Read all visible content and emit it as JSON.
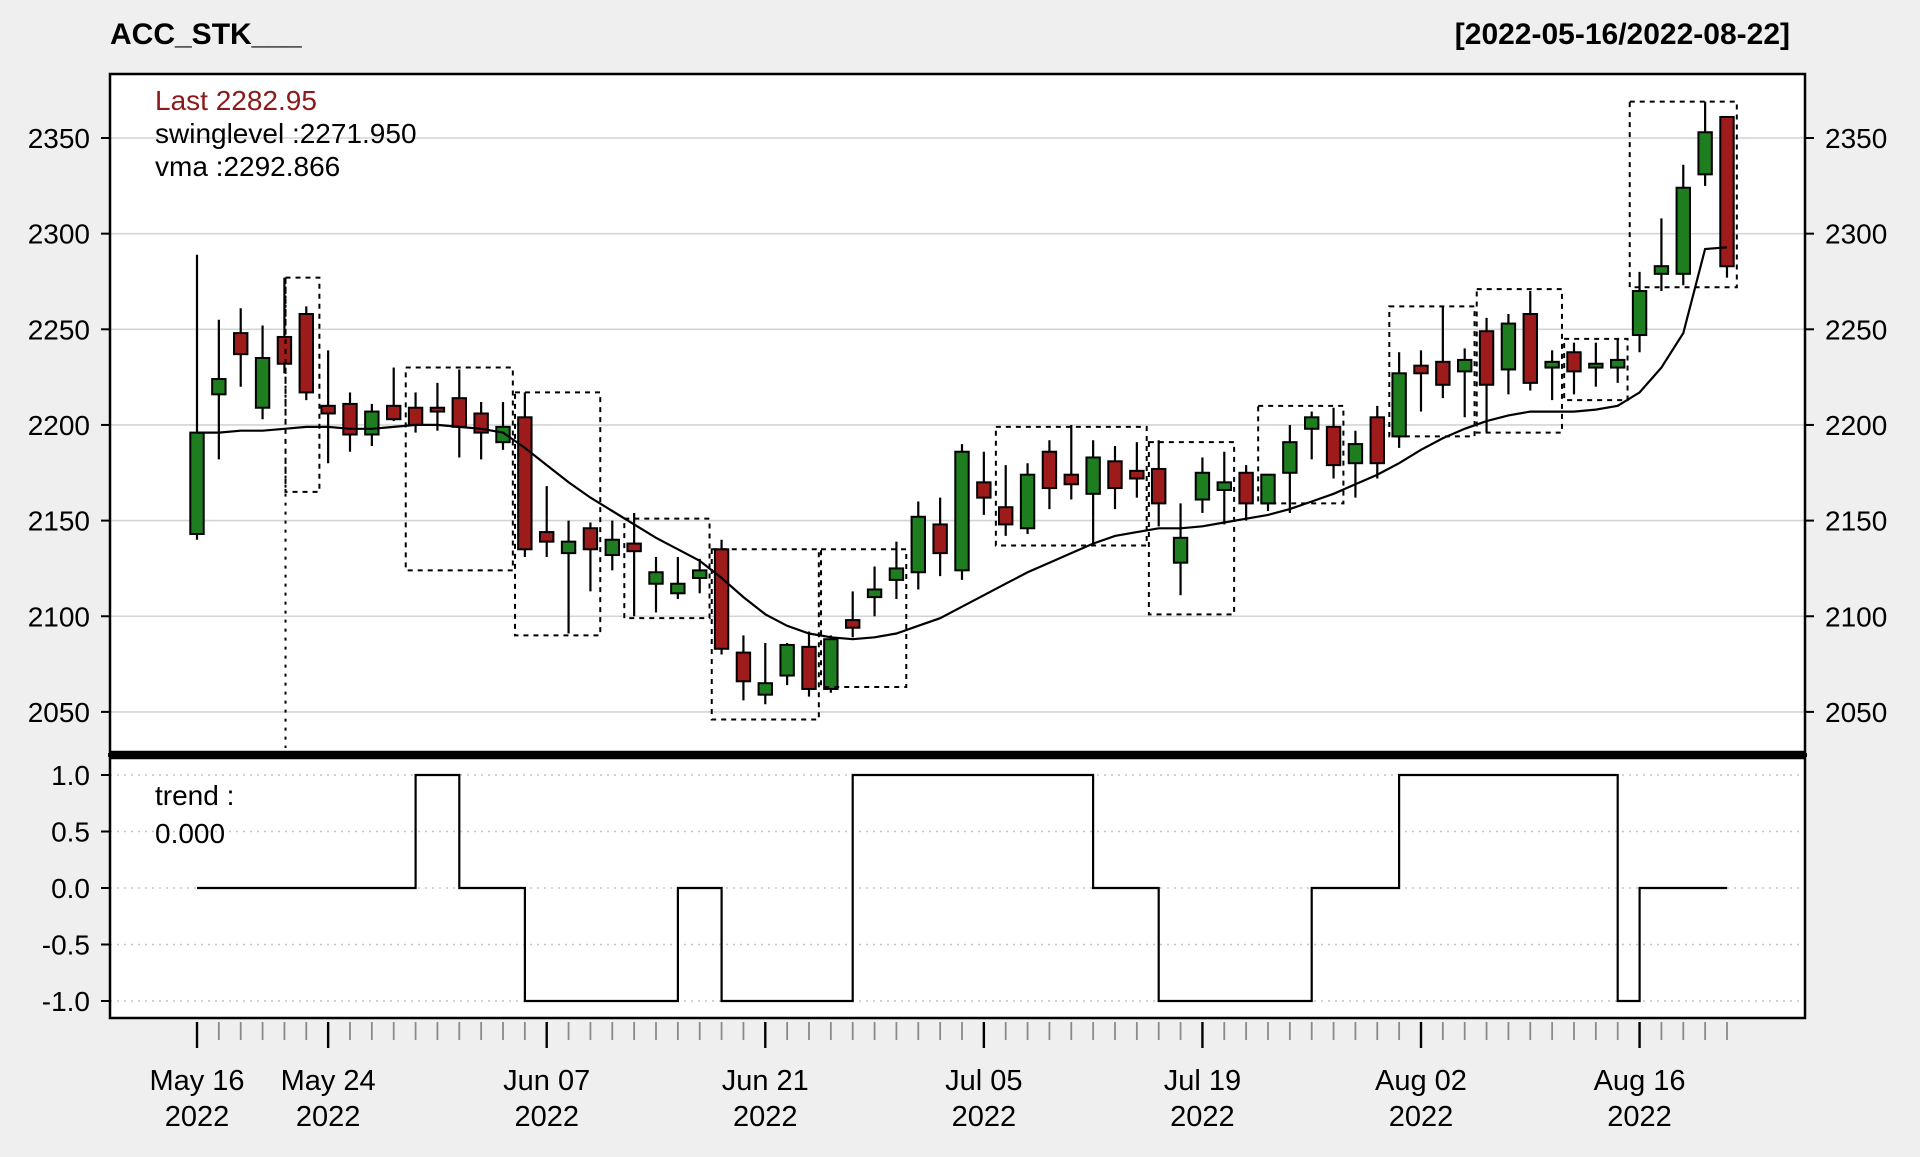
{
  "header": {
    "title": "ACC_STK___",
    "date_range": "[2022-05-16/2022-08-22]"
  },
  "main_panel": {
    "legend": {
      "last_label": "Last 2282.95",
      "swinglevel_label": "swinglevel :2271.950",
      "vma_label": "vma :2292.866"
    },
    "last_value": 2282.95,
    "swinglevel": 2271.95,
    "vma_last": 2292.866,
    "y_ticks": [
      2350,
      2300,
      2250,
      2200,
      2150,
      2100,
      2050
    ]
  },
  "trend_panel": {
    "label_line1": "trend :",
    "label_line2": "0.000",
    "value": 0.0,
    "y_ticks": [
      "1.0",
      "0.5",
      "0.0",
      "-0.5",
      "-1.0"
    ]
  },
  "chart_data": {
    "type": "candlestick",
    "title": "ACC_STK___",
    "subtitle": "[2022-05-16/2022-08-22]",
    "ylabel": "",
    "xlabel": "",
    "grid": true,
    "ylim_main": [
      2029,
      2383
    ],
    "ylim_trend": [
      -1.15,
      1.15
    ],
    "x_ticks": [
      {
        "index": 0,
        "label": "May 16",
        "year": "2022"
      },
      {
        "index": 6,
        "label": "May 24",
        "year": "2022"
      },
      {
        "index": 16,
        "label": "Jun 07",
        "year": "2022"
      },
      {
        "index": 26,
        "label": "Jun 21",
        "year": "2022"
      },
      {
        "index": 36,
        "label": "Jul 05",
        "year": "2022"
      },
      {
        "index": 46,
        "label": "Jul 19",
        "year": "2022"
      },
      {
        "index": 56,
        "label": "Aug 02",
        "year": "2022"
      },
      {
        "index": 66,
        "label": "Aug 16",
        "year": "2022"
      }
    ],
    "dates": [
      "2022-05-16",
      "2022-05-17",
      "2022-05-18",
      "2022-05-19",
      "2022-05-20",
      "2022-05-23",
      "2022-05-24",
      "2022-05-25",
      "2022-05-26",
      "2022-05-27",
      "2022-05-30",
      "2022-05-31",
      "2022-06-01",
      "2022-06-02",
      "2022-06-03",
      "2022-06-06",
      "2022-06-07",
      "2022-06-08",
      "2022-06-09",
      "2022-06-10",
      "2022-06-13",
      "2022-06-14",
      "2022-06-15",
      "2022-06-16",
      "2022-06-17",
      "2022-06-20",
      "2022-06-21",
      "2022-06-22",
      "2022-06-23",
      "2022-06-24",
      "2022-06-27",
      "2022-06-28",
      "2022-06-29",
      "2022-06-30",
      "2022-07-01",
      "2022-07-04",
      "2022-07-05",
      "2022-07-06",
      "2022-07-07",
      "2022-07-08",
      "2022-07-11",
      "2022-07-12",
      "2022-07-13",
      "2022-07-14",
      "2022-07-15",
      "2022-07-18",
      "2022-07-19",
      "2022-07-20",
      "2022-07-21",
      "2022-07-22",
      "2022-07-25",
      "2022-07-26",
      "2022-07-27",
      "2022-07-28",
      "2022-07-29",
      "2022-08-01",
      "2022-08-02",
      "2022-08-03",
      "2022-08-04",
      "2022-08-05",
      "2022-08-08",
      "2022-08-09",
      "2022-08-10",
      "2022-08-11",
      "2022-08-12",
      "2022-08-15",
      "2022-08-16",
      "2022-08-17",
      "2022-08-18",
      "2022-08-19",
      "2022-08-22"
    ],
    "ohlc": [
      [
        2143,
        2289,
        2140,
        2196
      ],
      [
        2216,
        2255,
        2182,
        2224
      ],
      [
        2248,
        2261,
        2220,
        2237
      ],
      [
        2209,
        2252,
        2203,
        2235
      ],
      [
        2246,
        2277,
        2227,
        2232
      ],
      [
        2258,
        2262,
        2213,
        2217
      ],
      [
        2210,
        2239,
        2180,
        2206
      ],
      [
        2211,
        2217,
        2186,
        2195
      ],
      [
        2195,
        2211,
        2189,
        2207
      ],
      [
        2210,
        2230,
        2202,
        2203
      ],
      [
        2209,
        2217,
        2196,
        2200
      ],
      [
        2209,
        2222,
        2197,
        2207
      ],
      [
        2214,
        2229,
        2183,
        2199
      ],
      [
        2206,
        2212,
        2182,
        2196
      ],
      [
        2191,
        2212,
        2187,
        2199
      ],
      [
        2204,
        2217,
        2131,
        2135
      ],
      [
        2144,
        2168,
        2131,
        2139
      ],
      [
        2133,
        2150,
        2091,
        2139
      ],
      [
        2146,
        2149,
        2113,
        2135
      ],
      [
        2132,
        2150,
        2124,
        2140
      ],
      [
        2138,
        2154,
        2100,
        2134
      ],
      [
        2117,
        2131,
        2102,
        2123
      ],
      [
        2112,
        2131,
        2109,
        2117
      ],
      [
        2120,
        2130,
        2112,
        2124
      ],
      [
        2135,
        2140,
        2080,
        2083
      ],
      [
        2081,
        2090,
        2056,
        2066
      ],
      [
        2059,
        2086,
        2054,
        2065
      ],
      [
        2069,
        2086,
        2064,
        2085
      ],
      [
        2084,
        2092,
        2058,
        2062
      ],
      [
        2062,
        2090,
        2060,
        2088
      ],
      [
        2098,
        2113,
        2089,
        2094
      ],
      [
        2110,
        2126,
        2100,
        2114
      ],
      [
        2119,
        2139,
        2109,
        2125
      ],
      [
        2123,
        2160,
        2114,
        2152
      ],
      [
        2148,
        2162,
        2121,
        2133
      ],
      [
        2124,
        2190,
        2119,
        2186
      ],
      [
        2170,
        2186,
        2153,
        2162
      ],
      [
        2157,
        2179,
        2142,
        2148
      ],
      [
        2146,
        2180,
        2143,
        2174
      ],
      [
        2186,
        2192,
        2156,
        2167
      ],
      [
        2174,
        2200,
        2161,
        2169
      ],
      [
        2164,
        2192,
        2137,
        2183
      ],
      [
        2181,
        2189,
        2156,
        2167
      ],
      [
        2176,
        2191,
        2162,
        2172
      ],
      [
        2177,
        2192,
        2147,
        2159
      ],
      [
        2128,
        2159,
        2111,
        2141
      ],
      [
        2161,
        2183,
        2154,
        2175
      ],
      [
        2166,
        2186,
        2148,
        2170
      ],
      [
        2175,
        2179,
        2150,
        2159
      ],
      [
        2159,
        2174,
        2155,
        2174
      ],
      [
        2175,
        2200,
        2154,
        2191
      ],
      [
        2198,
        2207,
        2182,
        2204
      ],
      [
        2199,
        2209,
        2172,
        2179
      ],
      [
        2180,
        2197,
        2162,
        2190
      ],
      [
        2204,
        2210,
        2172,
        2180
      ],
      [
        2194,
        2238,
        2188,
        2227
      ],
      [
        2231,
        2239,
        2207,
        2227
      ],
      [
        2233,
        2262,
        2214,
        2221
      ],
      [
        2228,
        2240,
        2204,
        2234
      ],
      [
        2249,
        2256,
        2196,
        2221
      ],
      [
        2229,
        2258,
        2216,
        2253
      ],
      [
        2258,
        2270,
        2218,
        2222
      ],
      [
        2230,
        2239,
        2213,
        2233
      ],
      [
        2238,
        2243,
        2216,
        2228
      ],
      [
        2230,
        2243,
        2220,
        2232
      ],
      [
        2230,
        2245,
        2222,
        2234
      ],
      [
        2247,
        2280,
        2238,
        2270
      ],
      [
        2279,
        2308,
        2270,
        2283
      ],
      [
        2279,
        2336,
        2273,
        2324
      ],
      [
        2331,
        2369,
        2325,
        2353
      ],
      [
        2361,
        2361,
        2277,
        2282.95
      ]
    ],
    "vma": [
      2196,
      2196,
      2197,
      2197,
      2198,
      2199,
      2199,
      2198,
      2198,
      2199,
      2200,
      2200,
      2199,
      2198,
      2196,
      2188,
      2179,
      2170,
      2162,
      2155,
      2148,
      2141,
      2135,
      2129,
      2120,
      2110,
      2101,
      2095,
      2091,
      2089,
      2088,
      2089,
      2091,
      2095,
      2099,
      2105,
      2111,
      2117,
      2123,
      2128,
      2133,
      2138,
      2142,
      2144,
      2146,
      2146,
      2147,
      2149,
      2151,
      2153,
      2156,
      2160,
      2164,
      2169,
      2174,
      2180,
      2187,
      2193,
      2198,
      2202,
      2205,
      2207,
      2207,
      2207,
      2208,
      2210,
      2217,
      2230,
      2248,
      2292,
      2292.87
    ],
    "trend": [
      0,
      0,
      0,
      0,
      0,
      0,
      0,
      0,
      0,
      0,
      1,
      1,
      0,
      0,
      0,
      -1,
      -1,
      -1,
      -1,
      -1,
      -1,
      -1,
      0,
      0,
      -1,
      -1,
      -1,
      -1,
      -1,
      -1,
      1,
      1,
      1,
      1,
      1,
      1,
      1,
      1,
      1,
      1,
      1,
      0,
      0,
      0,
      -1,
      -1,
      -1,
      -1,
      -1,
      -1,
      -1,
      0,
      0,
      0,
      0,
      1,
      1,
      1,
      1,
      1,
      1,
      1,
      1,
      1,
      1,
      -1,
      0,
      0,
      0,
      0,
      0
    ],
    "swing_boxes": [
      {
        "i0": 4.05,
        "i1": 5.6,
        "p0": 2165,
        "p1": 2277
      },
      {
        "i0": 9.55,
        "i1": 14.45,
        "p0": 2124,
        "p1": 2230
      },
      {
        "i0": 14.55,
        "i1": 18.45,
        "p0": 2090,
        "p1": 2217
      },
      {
        "i0": 19.55,
        "i1": 23.45,
        "p0": 2099,
        "p1": 2151
      },
      {
        "i0": 23.55,
        "i1": 28.45,
        "p0": 2046,
        "p1": 2135
      },
      {
        "i0": 28.55,
        "i1": 32.45,
        "p0": 2063,
        "p1": 2135
      },
      {
        "i0": 36.55,
        "i1": 43.45,
        "p0": 2137,
        "p1": 2199
      },
      {
        "i0": 43.55,
        "i1": 47.45,
        "p0": 2101,
        "p1": 2191
      },
      {
        "i0": 48.55,
        "i1": 52.45,
        "p0": 2159,
        "p1": 2210
      },
      {
        "i0": 54.55,
        "i1": 58.45,
        "p0": 2194,
        "p1": 2262
      },
      {
        "i0": 58.55,
        "i1": 62.45,
        "p0": 2196,
        "p1": 2271
      },
      {
        "i0": 62.55,
        "i1": 65.45,
        "p0": 2213,
        "p1": 2245
      },
      {
        "i0": 65.55,
        "i1": 70.45,
        "p0": 2271.95,
        "p1": 2369
      }
    ],
    "swing_vline": {
      "index": 4.05,
      "from_price": 2277
    },
    "legend_position": "top-left",
    "colors": {
      "up": "#1E7D1E",
      "down": "#9E1B1B",
      "candle_border": "#000000",
      "last_text": "#8B1A1A",
      "line": "#000000",
      "grid": "#d4d4d4",
      "trend_grid": "#c4c4c4",
      "panel_bg": "#ffffff",
      "figure_bg": "#efefef",
      "text": "#000000"
    }
  }
}
